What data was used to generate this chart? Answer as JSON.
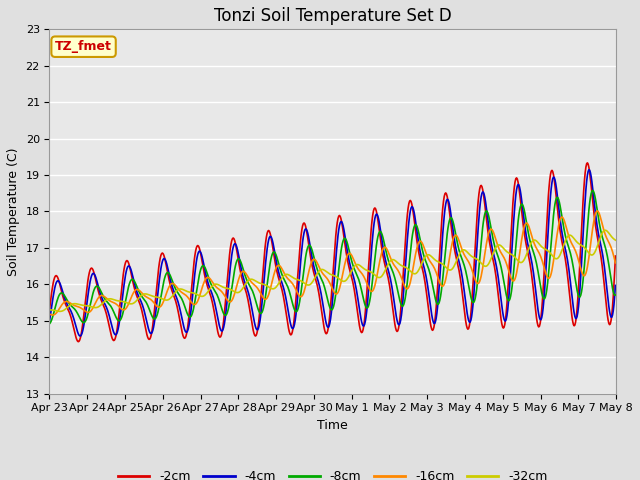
{
  "title": "Tonzi Soil Temperature Set D",
  "xlabel": "Time",
  "ylabel": "Soil Temperature (C)",
  "ylim": [
    13.0,
    23.0
  ],
  "yticks": [
    13.0,
    14.0,
    15.0,
    16.0,
    17.0,
    18.0,
    19.0,
    20.0,
    21.0,
    22.0,
    23.0
  ],
  "fig_bg_color": "#e0e0e0",
  "plot_bg_color": "#e8e8e8",
  "legend_label": "TZ_fmet",
  "legend_box_color": "#ffffcc",
  "legend_box_edge": "#cc9900",
  "legend_text_color": "#cc0000",
  "series": [
    {
      "label": "-2cm",
      "color": "#dd0000",
      "lw": 1.2
    },
    {
      "label": "-4cm",
      "color": "#0000cc",
      "lw": 1.2
    },
    {
      "label": "-8cm",
      "color": "#00aa00",
      "lw": 1.2
    },
    {
      "label": "-16cm",
      "color": "#ff8800",
      "lw": 1.2
    },
    {
      "label": "-32cm",
      "color": "#cccc00",
      "lw": 1.2
    }
  ],
  "tick_labels": [
    "Apr 23",
    "Apr 24",
    "Apr 25",
    "Apr 26",
    "Apr 27",
    "Apr 28",
    "Apr 29",
    "Apr 30",
    "May 1",
    "May 2",
    "May 3",
    "May 4",
    "May 5",
    "May 6",
    "May 7",
    "May 8"
  ],
  "n_days": 16,
  "title_fontsize": 12,
  "axis_fontsize": 9,
  "tick_fontsize": 8
}
